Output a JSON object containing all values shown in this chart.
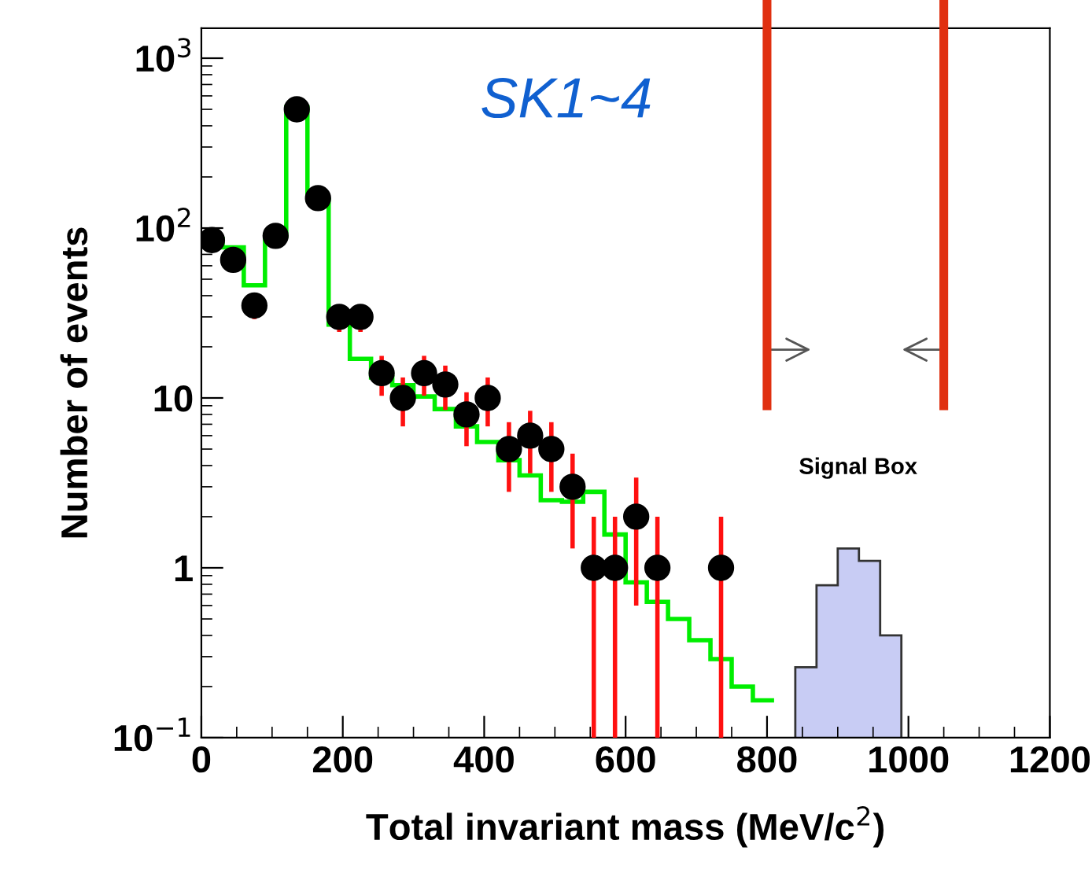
{
  "chart_data": {
    "type": "histogram",
    "xlabel": "Total invariant mass (MeV/c$^{2}$)",
    "ylabel": "Number of events",
    "xlim": [
      0,
      1200
    ],
    "xticks": [
      0,
      200,
      400,
      600,
      800,
      1000,
      1200
    ],
    "ylim": [
      0.1,
      1500
    ],
    "log": "y",
    "yticks": [
      {
        "value": 0.1,
        "label": "10$^{−1}$"
      },
      1,
      10,
      {
        "value": 100,
        "label": "10$^{2}$"
      },
      {
        "value": 1000,
        "label": "10$^{3}$"
      }
    ],
    "grid": false,
    "legend": false,
    "series": [
      {
        "color": "#00ee00",
        "bins": [
          0,
          30,
          60,
          90,
          120,
          150,
          180,
          210,
          240,
          270,
          300,
          330,
          360,
          390,
          420,
          450,
          480,
          510,
          540,
          570,
          600,
          630,
          660,
          690,
          720,
          750,
          780,
          810
        ],
        "values": [
          86,
          77,
          46,
          90,
          515,
          147,
          27,
          17,
          13.2,
          11.9,
          10.2,
          8.6,
          6.8,
          5.5,
          4.3,
          3.5,
          2.5,
          2.45,
          2.8,
          1.57,
          0.82,
          0.63,
          0.5,
          0.375,
          0.29,
          0.2,
          0.166
        ]
      },
      {
        "color": "#c8ccf4",
        "bins": [
          840,
          870,
          900,
          930,
          960,
          990
        ],
        "values": [
          0.26,
          0.79,
          1.3,
          1.1,
          0.4
        ]
      },
      {
        "type": "scatter",
        "color": "#000000",
        "marker": "circle",
        "x": [
          15,
          45,
          75,
          105,
          135,
          165,
          195,
          225,
          255,
          285,
          315,
          345,
          375,
          405,
          435,
          465,
          495,
          525,
          555,
          585,
          615,
          645,
          735
        ],
        "values": [
          85,
          65,
          35,
          90,
          500,
          150,
          30,
          30,
          14,
          10,
          14,
          12,
          8,
          10,
          5,
          6,
          5,
          3,
          1,
          1,
          2,
          1,
          1
        ],
        "errors": [
          null,
          null,
          5.9,
          null,
          null,
          null,
          5.5,
          5.5,
          3.7,
          3.2,
          3.7,
          3.5,
          2.8,
          3.2,
          2.2,
          2.4,
          2.2,
          1.7,
          [
            0.1,
            2
          ],
          [
            0.1,
            2
          ],
          1.4,
          [
            0.1,
            2
          ],
          [
            0.1,
            2
          ]
        ]
      }
    ],
    "ref_lines": [
      {
        "axis": "x",
        "value": 800,
        "label": null,
        "color": "#e03010"
      },
      {
        "axis": "x",
        "value": 1050,
        "label": null,
        "color": "#e03010"
      }
    ],
    "annotations": [
      "SK1~4",
      "Signal Box"
    ]
  }
}
